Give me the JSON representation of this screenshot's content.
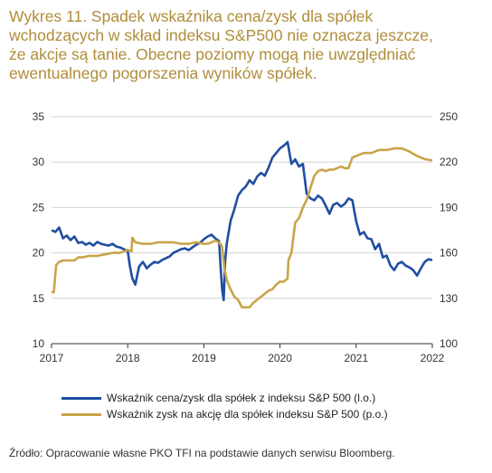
{
  "title": "Wykres 11. Spadek wskaźnika cena/zysk dla spółek\nwchodzących w skład indeksu S&P500 nie oznacza jeszcze,\nże akcje są tanie. Obecne poziomy mogą nie uwzględniać\newentualnego pogorszenia wyników spółek.",
  "source": "Źródło: Opracowanie własne PKO TFI na podstawie danych serwisu Bloomberg.",
  "colors": {
    "title": "#b08d3a",
    "pe": "#1f4ea1",
    "eps": "#c9a44a",
    "axis": "#333333",
    "grid": "#d6d6d6"
  },
  "chart_data": {
    "type": "line",
    "xlim": [
      2017,
      2022
    ],
    "x_ticks": [
      "2017",
      "2018",
      "2019",
      "2020",
      "2021",
      "2022"
    ],
    "y_left": {
      "lim": [
        10,
        35
      ],
      "ticks": [
        "10",
        "15",
        "20",
        "25",
        "30",
        "35"
      ]
    },
    "y_right": {
      "lim": [
        100,
        250
      ],
      "ticks": [
        "100",
        "130",
        "160",
        "190",
        "220",
        "250"
      ]
    },
    "grid": "horizontal",
    "legend_position": "bottom",
    "series": [
      {
        "name": "Wskaźnik cena/zysk dla spółek z indeksu S&P 500 (l.o.)",
        "axis": "left",
        "color": "#1f4ea1",
        "x": [
          2017.0,
          2017.05,
          2017.1,
          2017.15,
          2017.2,
          2017.25,
          2017.3,
          2017.35,
          2017.4,
          2017.45,
          2017.5,
          2017.55,
          2017.6,
          2017.65,
          2017.7,
          2017.75,
          2017.8,
          2017.85,
          2017.9,
          2017.95,
          2018.0,
          2018.03,
          2018.06,
          2018.1,
          2018.15,
          2018.2,
          2018.25,
          2018.3,
          2018.35,
          2018.4,
          2018.45,
          2018.5,
          2018.55,
          2018.6,
          2018.65,
          2018.7,
          2018.75,
          2018.8,
          2018.85,
          2018.9,
          2018.95,
          2019.0,
          2019.05,
          2019.1,
          2019.15,
          2019.2,
          2019.22,
          2019.24,
          2019.26,
          2019.28,
          2019.3,
          2019.35,
          2019.4,
          2019.45,
          2019.5,
          2019.55,
          2019.6,
          2019.65,
          2019.7,
          2019.75,
          2019.8,
          2019.85,
          2019.9,
          2019.95,
          2020.0,
          2020.05,
          2020.1,
          2020.15,
          2020.2,
          2020.25,
          2020.3,
          2020.35,
          2020.4,
          2020.45,
          2020.5,
          2020.55,
          2020.6,
          2020.65,
          2020.7,
          2020.75,
          2020.8,
          2020.85,
          2020.9,
          2020.95,
          2021.0,
          2021.05,
          2021.1,
          2021.15,
          2021.2,
          2021.25,
          2021.3,
          2021.35,
          2021.4,
          2021.45,
          2021.5,
          2021.55,
          2021.6,
          2021.65,
          2021.7,
          2021.75,
          2021.8,
          2021.85,
          2021.9,
          2021.95,
          2022.0
        ],
        "values": [
          22.5,
          22.3,
          22.8,
          21.6,
          21.9,
          21.4,
          21.8,
          21.1,
          21.2,
          20.9,
          21.1,
          20.8,
          21.2,
          21.0,
          20.9,
          20.8,
          21.0,
          20.7,
          20.6,
          20.4,
          20.2,
          18.5,
          17.2,
          16.5,
          18.5,
          19.0,
          18.3,
          18.7,
          19.0,
          18.9,
          19.2,
          19.4,
          19.6,
          20.0,
          20.2,
          20.4,
          20.5,
          20.3,
          20.6,
          20.9,
          21.1,
          21.5,
          21.8,
          22.0,
          21.6,
          21.3,
          18.5,
          16.0,
          14.8,
          19.2,
          21.0,
          23.5,
          24.8,
          26.3,
          26.9,
          27.3,
          28.0,
          27.6,
          28.4,
          28.8,
          28.5,
          29.4,
          30.5,
          31.0,
          31.5,
          31.8,
          32.2,
          29.8,
          30.3,
          29.5,
          29.8,
          26.5,
          26.0,
          25.8,
          26.3,
          26.0,
          25.2,
          24.3,
          25.3,
          25.5,
          25.1,
          25.4,
          26.0,
          25.8,
          23.5,
          22.0,
          22.3,
          21.6,
          21.5,
          20.4,
          21.0,
          19.5,
          19.7,
          18.6,
          18.1,
          18.8,
          19.0,
          18.6,
          18.4,
          18.1,
          17.5,
          18.3,
          19.0,
          19.3,
          19.2
        ]
      },
      {
        "name": "Wskaźnik zysk na akcję dla spółek indeksu S&P 500 (p.o.)",
        "axis": "right",
        "color": "#c9a44a",
        "x": [
          2017.0,
          2017.03,
          2017.06,
          2017.1,
          2017.15,
          2017.2,
          2017.3,
          2017.35,
          2017.4,
          2017.5,
          2017.6,
          2017.7,
          2017.8,
          2017.9,
          2018.0,
          2018.05,
          2018.06,
          2018.1,
          2018.2,
          2018.3,
          2018.4,
          2018.5,
          2018.6,
          2018.7,
          2018.8,
          2018.9,
          2019.0,
          2019.05,
          2019.1,
          2019.15,
          2019.2,
          2019.24,
          2019.27,
          2019.3,
          2019.35,
          2019.4,
          2019.45,
          2019.5,
          2019.55,
          2019.6,
          2019.65,
          2019.7,
          2019.75,
          2019.8,
          2019.85,
          2019.9,
          2019.95,
          2020.0,
          2020.05,
          2020.1,
          2020.11,
          2020.15,
          2020.2,
          2020.25,
          2020.3,
          2020.35,
          2020.4,
          2020.45,
          2020.5,
          2020.55,
          2020.6,
          2020.65,
          2020.7,
          2020.75,
          2020.8,
          2020.85,
          2020.9,
          2020.95,
          2021.0,
          2021.05,
          2021.1,
          2021.2,
          2021.3,
          2021.4,
          2021.5,
          2021.6,
          2021.7,
          2021.8,
          2021.9,
          2022.0
        ],
        "values": [
          134,
          134,
          152,
          154,
          155,
          155,
          155,
          157,
          157,
          158,
          158,
          159,
          160,
          160,
          162,
          161,
          170,
          167,
          166,
          166,
          167,
          167,
          167,
          166,
          166,
          167,
          166,
          166,
          167,
          168,
          167,
          164,
          150,
          142,
          136,
          131,
          129,
          124,
          124,
          124,
          127,
          129,
          131,
          133,
          135,
          136,
          139,
          141,
          141,
          143,
          155,
          160,
          180,
          183,
          190,
          195,
          203,
          211,
          214,
          215,
          214,
          215,
          215,
          216,
          217,
          216,
          216,
          223,
          224,
          225,
          226,
          226,
          228,
          228,
          229,
          229,
          227,
          224,
          222,
          221
        ]
      }
    ]
  }
}
